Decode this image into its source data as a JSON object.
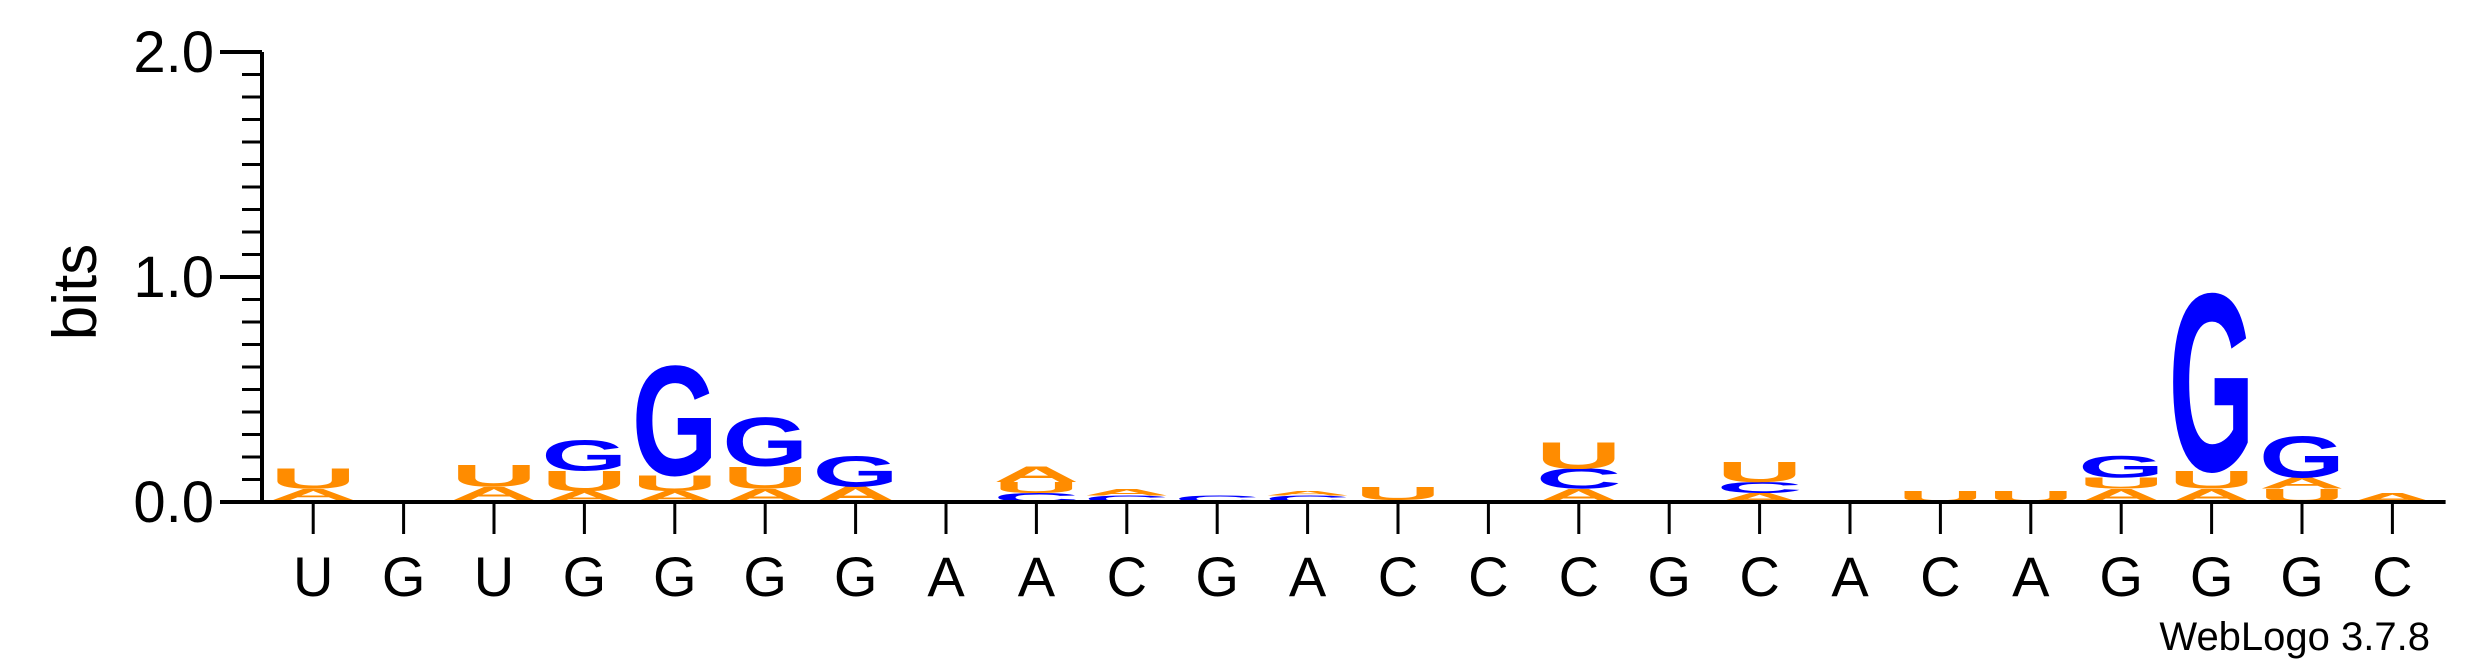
{
  "chart_data": {
    "type": "sequence-logo",
    "ylabel": "bits",
    "ylim": [
      0,
      2.0
    ],
    "yticks": [
      "0.0",
      "1.0",
      "2.0"
    ],
    "footer": "WebLogo 3.7.8",
    "colors": {
      "G": "#0000ff",
      "C": "#0000ff",
      "A": "#ff8c00",
      "U": "#ff8c00"
    },
    "positions": [
      {
        "consensus": "U",
        "stack": [
          {
            "base": "C",
            "bits": 0.01
          },
          {
            "base": "A",
            "bits": 0.05
          },
          {
            "base": "U",
            "bits": 0.09
          }
        ]
      },
      {
        "consensus": "G",
        "stack": []
      },
      {
        "consensus": "U",
        "stack": [
          {
            "base": "C",
            "bits": 0.01
          },
          {
            "base": "A",
            "bits": 0.06
          },
          {
            "base": "U",
            "bits": 0.1
          }
        ]
      },
      {
        "consensus": "G",
        "stack": [
          {
            "base": "A",
            "bits": 0.05
          },
          {
            "base": "U",
            "bits": 0.09
          },
          {
            "base": "G",
            "bits": 0.14
          }
        ]
      },
      {
        "consensus": "G",
        "stack": [
          {
            "base": "A",
            "bits": 0.05
          },
          {
            "base": "U",
            "bits": 0.07
          },
          {
            "base": "G",
            "bits": 0.5
          }
        ]
      },
      {
        "consensus": "G",
        "stack": [
          {
            "base": "A",
            "bits": 0.06
          },
          {
            "base": "U",
            "bits": 0.1
          },
          {
            "base": "G",
            "bits": 0.22
          }
        ]
      },
      {
        "consensus": "G",
        "stack": [
          {
            "base": "A",
            "bits": 0.07
          },
          {
            "base": "G",
            "bits": 0.14
          }
        ]
      },
      {
        "consensus": "A",
        "stack": []
      },
      {
        "consensus": "A",
        "stack": [
          {
            "base": "C",
            "bits": 0.04
          },
          {
            "base": "U",
            "bits": 0.05
          },
          {
            "base": "A",
            "bits": 0.07
          }
        ]
      },
      {
        "consensus": "C",
        "stack": [
          {
            "base": "C",
            "bits": 0.03
          },
          {
            "base": "A",
            "bits": 0.03
          }
        ]
      },
      {
        "consensus": "G",
        "stack": [
          {
            "base": "C",
            "bits": 0.03
          }
        ]
      },
      {
        "consensus": "A",
        "stack": [
          {
            "base": "C",
            "bits": 0.03
          },
          {
            "base": "A",
            "bits": 0.02
          }
        ]
      },
      {
        "consensus": "C",
        "stack": [
          {
            "base": "A",
            "bits": 0.01
          },
          {
            "base": "U",
            "bits": 0.06
          }
        ]
      },
      {
        "consensus": "C",
        "stack": []
      },
      {
        "consensus": "C",
        "stack": [
          {
            "base": "A",
            "bits": 0.06
          },
          {
            "base": "C",
            "bits": 0.09
          },
          {
            "base": "U",
            "bits": 0.12
          }
        ]
      },
      {
        "consensus": "G",
        "stack": []
      },
      {
        "consensus": "C",
        "stack": [
          {
            "base": "A",
            "bits": 0.04
          },
          {
            "base": "C",
            "bits": 0.05
          },
          {
            "base": "U",
            "bits": 0.09
          }
        ]
      },
      {
        "consensus": "A",
        "stack": []
      },
      {
        "consensus": "C",
        "stack": [
          {
            "base": "U",
            "bits": 0.05
          }
        ]
      },
      {
        "consensus": "A",
        "stack": [
          {
            "base": "U",
            "bits": 0.05
          }
        ]
      },
      {
        "consensus": "G",
        "stack": [
          {
            "base": "A",
            "bits": 0.06
          },
          {
            "base": "U",
            "bits": 0.05
          },
          {
            "base": "G",
            "bits": 0.1
          }
        ]
      },
      {
        "consensus": "G",
        "stack": [
          {
            "base": "A",
            "bits": 0.06
          },
          {
            "base": "U",
            "bits": 0.08
          },
          {
            "base": "G",
            "bits": 0.81
          }
        ]
      },
      {
        "consensus": "G",
        "stack": [
          {
            "base": "U",
            "bits": 0.06
          },
          {
            "base": "A",
            "bits": 0.05
          },
          {
            "base": "G",
            "bits": 0.19
          }
        ]
      },
      {
        "consensus": "C",
        "stack": [
          {
            "base": "A",
            "bits": 0.04
          }
        ]
      }
    ]
  }
}
